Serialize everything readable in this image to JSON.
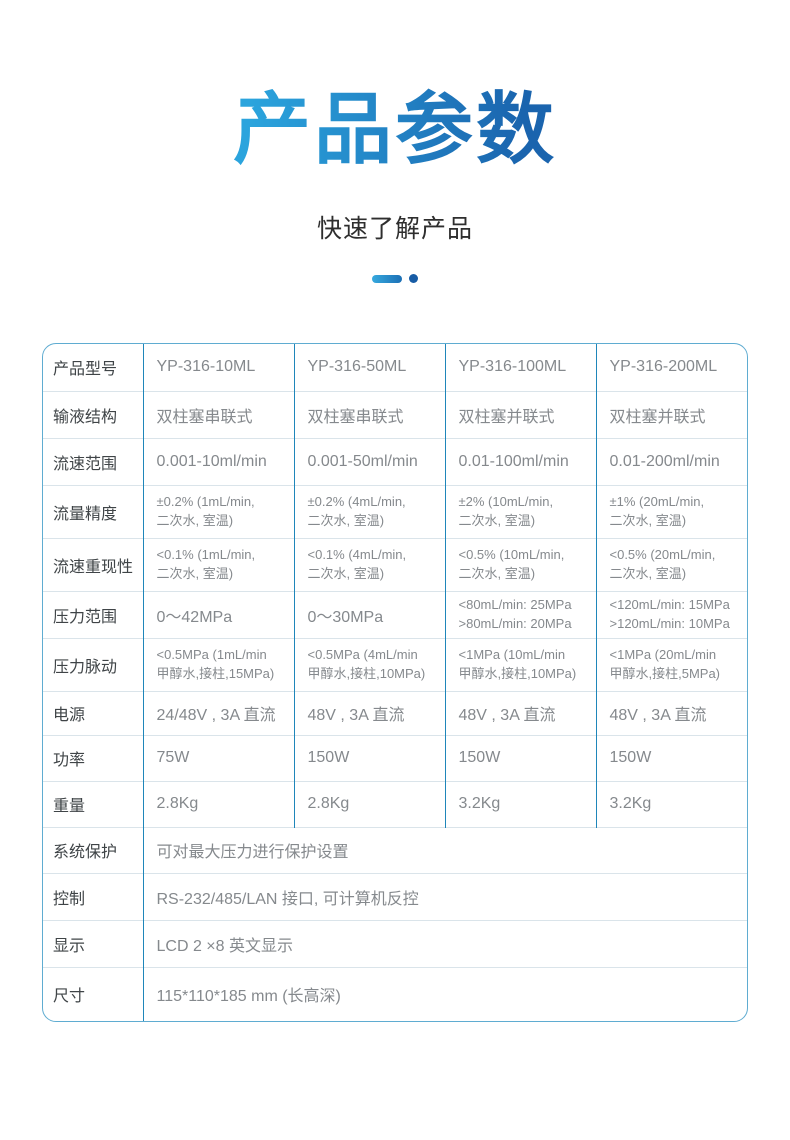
{
  "page": {
    "title": "产品参数",
    "subtitle": "快速了解产品"
  },
  "colors": {
    "title_gradient_start": "#2BA4DD",
    "title_gradient_end": "#1A64AE",
    "decoration_dash": "#2196D3",
    "decoration_dot": "#175CA5",
    "table_outer_border": "#5FACD1",
    "table_vertical_line": "#1F86BA",
    "table_horizontal_line": "#DAE4EA",
    "label_text": "#3F4447",
    "value_text": "#85898D"
  },
  "table": {
    "header": {
      "label": "产品型号",
      "models": [
        "YP-316-10ML",
        "YP-316-50ML",
        "YP-316-100ML",
        "YP-316-200ML"
      ]
    },
    "rows": [
      {
        "label": "输液结构",
        "values": [
          "双柱塞串联式",
          "双柱塞串联式",
          "双柱塞并联式",
          "双柱塞并联式"
        ]
      },
      {
        "label": "流速范围",
        "values": [
          "0.001-10ml/min",
          "0.001-50ml/min",
          "0.01-100ml/min",
          "0.01-200ml/min"
        ]
      },
      {
        "label": "流量精度",
        "values": [
          "±0.2% (1mL/min,\n二次水, 室温)",
          "±0.2% (4mL/min,\n二次水, 室温)",
          "±2% (10mL/min,\n二次水, 室温)",
          "±1% (20mL/min,\n二次水, 室温)"
        ]
      },
      {
        "label": "流速重现性",
        "values": [
          "<0.1% (1mL/min,\n二次水, 室温)",
          "<0.1% (4mL/min,\n二次水, 室温)",
          "<0.5% (10mL/min,\n二次水, 室温)",
          "<0.5% (20mL/min,\n二次水, 室温)"
        ]
      },
      {
        "label": "压力范围",
        "values": [
          "0～42MPa",
          "0～30MPa",
          "<80mL/min: 25MPa\n>80mL/min: 20MPa",
          "<120mL/min: 15MPa\n>120mL/min: 10MPa"
        ]
      },
      {
        "label": "压力脉动",
        "values": [
          "<0.5MPa (1mL/min\n甲醇水,接柱,15MPa)",
          "<0.5MPa (4mL/min\n甲醇水,接柱,10MPa)",
          "<1MPa (10mL/min\n甲醇水,接柱,10MPa)",
          "<1MPa (20mL/min\n甲醇水,接柱,5MPa)"
        ]
      },
      {
        "label": "电源",
        "values": [
          "24/48V , 3A 直流",
          "48V , 3A 直流",
          "48V , 3A 直流",
          "48V , 3A 直流"
        ]
      },
      {
        "label": "功率",
        "values": [
          "75W",
          "150W",
          "150W",
          "150W"
        ]
      },
      {
        "label": "重量",
        "values": [
          "2.8Kg",
          "2.8Kg",
          "3.2Kg",
          "3.2Kg"
        ]
      }
    ],
    "span_rows": [
      {
        "label": "系统保护",
        "value": "可对最大压力进行保护设置"
      },
      {
        "label": "控制",
        "value": "RS-232/485/LAN 接口, 可计算机反控"
      },
      {
        "label": "显示",
        "value": "LCD 2 ×8 英文显示"
      },
      {
        "label": "尺寸",
        "value": "115*110*185 mm (长高深)"
      }
    ]
  }
}
